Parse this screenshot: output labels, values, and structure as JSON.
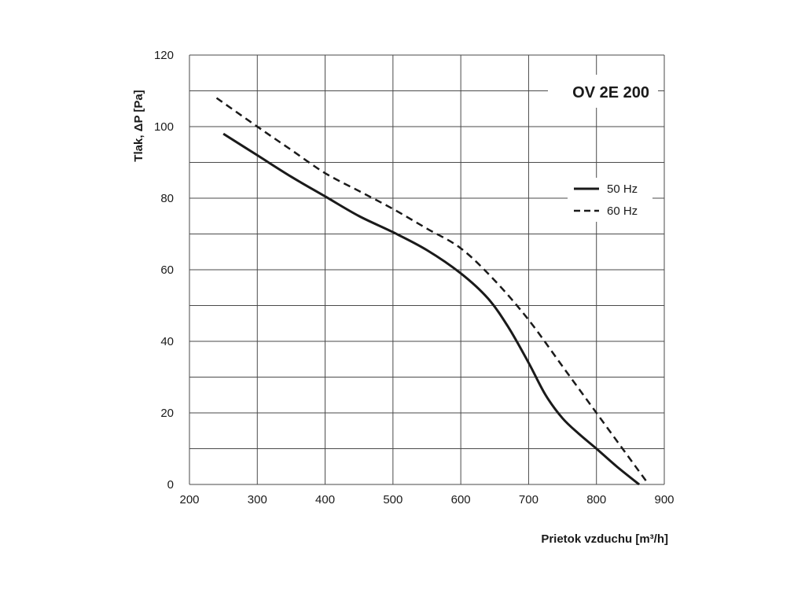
{
  "chart_data": {
    "type": "line",
    "title": "OV 2E 200",
    "xlabel": "Prietok vzduchu  [m³/h]",
    "ylabel": "Tlak, ΔP [Pa]",
    "xlim": [
      200,
      900
    ],
    "ylim": [
      0,
      120
    ],
    "x_ticks": [
      200,
      300,
      400,
      500,
      600,
      700,
      800,
      900
    ],
    "y_ticks": [
      0,
      20,
      40,
      60,
      80,
      100,
      120
    ],
    "grid": true,
    "legend_position": "right",
    "series": [
      {
        "name": "50 Hz",
        "style": "solid",
        "color": "#1a1a1a",
        "points": [
          [
            250,
            98
          ],
          [
            300,
            92
          ],
          [
            350,
            86
          ],
          [
            400,
            80.5
          ],
          [
            450,
            75
          ],
          [
            500,
            70.5
          ],
          [
            550,
            65.5
          ],
          [
            600,
            59
          ],
          [
            640,
            52
          ],
          [
            670,
            44
          ],
          [
            700,
            34
          ],
          [
            725,
            25
          ],
          [
            750,
            18.5
          ],
          [
            775,
            14
          ],
          [
            800,
            10
          ],
          [
            830,
            5
          ],
          [
            863,
            0
          ]
        ]
      },
      {
        "name": "60 Hz",
        "style": "dashed",
        "color": "#1a1a1a",
        "points": [
          [
            240,
            108
          ],
          [
            300,
            100
          ],
          [
            350,
            93.5
          ],
          [
            400,
            87
          ],
          [
            450,
            82
          ],
          [
            500,
            77
          ],
          [
            550,
            71.5
          ],
          [
            600,
            66
          ],
          [
            650,
            57
          ],
          [
            700,
            46
          ],
          [
            750,
            33
          ],
          [
            800,
            20
          ],
          [
            850,
            7
          ],
          [
            877,
            0
          ]
        ]
      }
    ]
  }
}
